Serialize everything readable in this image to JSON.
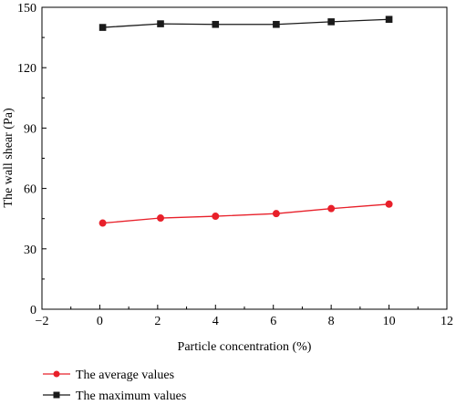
{
  "chart_data": {
    "type": "line",
    "xlabel": "Particle concentration (%)",
    "ylabel": "The wall shear (Pa)",
    "xlim": [
      -2,
      12
    ],
    "ylim": [
      0,
      150
    ],
    "x_ticks": [
      -2,
      0,
      2,
      4,
      6,
      8,
      10,
      12
    ],
    "x_tick_labels": [
      "−2",
      "0",
      "2",
      "4",
      "6",
      "8",
      "10",
      "12"
    ],
    "y_ticks": [
      0,
      30,
      60,
      90,
      120,
      150
    ],
    "y_tick_labels": [
      "0",
      "30",
      "60",
      "90",
      "120",
      "150"
    ],
    "grid": false,
    "legend_position": "bottom-left, below plot",
    "series": [
      {
        "name": "The average values",
        "color": "#e8202a",
        "marker": "circle",
        "x": [
          0.1,
          2.1,
          4,
          6.1,
          8,
          10
        ],
        "y": [
          42.8,
          45.3,
          46.2,
          47.5,
          50,
          52.2
        ]
      },
      {
        "name": "The maximum values",
        "color": "#1a1a1a",
        "marker": "square",
        "x": [
          0.1,
          2.1,
          4,
          6.1,
          8,
          10
        ],
        "y": [
          140,
          141.8,
          141.5,
          141.5,
          142.8,
          144
        ]
      }
    ]
  }
}
